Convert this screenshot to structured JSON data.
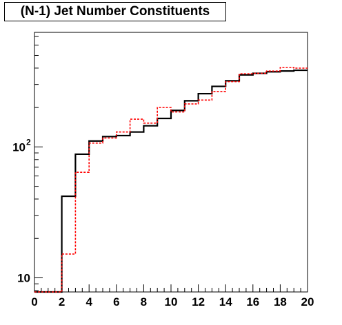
{
  "chart_data": {
    "type": "line",
    "title": "(N-1) Jet Number Constituents",
    "xlabel": "",
    "ylabel": "",
    "xlim": [
      0,
      20
    ],
    "ylim": [
      7.8,
      750
    ],
    "y_scale": "log",
    "grid": false,
    "x_ticks": [
      "0",
      "2",
      "4",
      "6",
      "8",
      "10",
      "12",
      "14",
      "16",
      "18",
      "20"
    ],
    "y_tick_labels": [
      {
        "value": 10,
        "base": "10",
        "exp": ""
      },
      {
        "value": 100,
        "base": "10",
        "exp": "2"
      }
    ],
    "bin_edges": [
      0,
      1,
      2,
      3,
      4,
      5,
      6,
      7,
      8,
      9,
      10,
      11,
      12,
      13,
      14,
      15,
      16,
      17,
      18,
      19,
      20
    ],
    "series": [
      {
        "style": "solid",
        "color": "#000000",
        "values": [
          7.8,
          7.8,
          42,
          88,
          111,
          120,
          122,
          130,
          145,
          165,
          190,
          225,
          255,
          290,
          320,
          355,
          365,
          375,
          380,
          385
        ]
      },
      {
        "style": "dashed",
        "color": "#ff0000",
        "values": [
          7.8,
          7.8,
          15.2,
          64,
          107,
          117,
          130,
          163,
          152,
          200,
          185,
          213,
          228,
          265,
          315,
          362,
          365,
          380,
          405,
          400
        ]
      }
    ]
  }
}
